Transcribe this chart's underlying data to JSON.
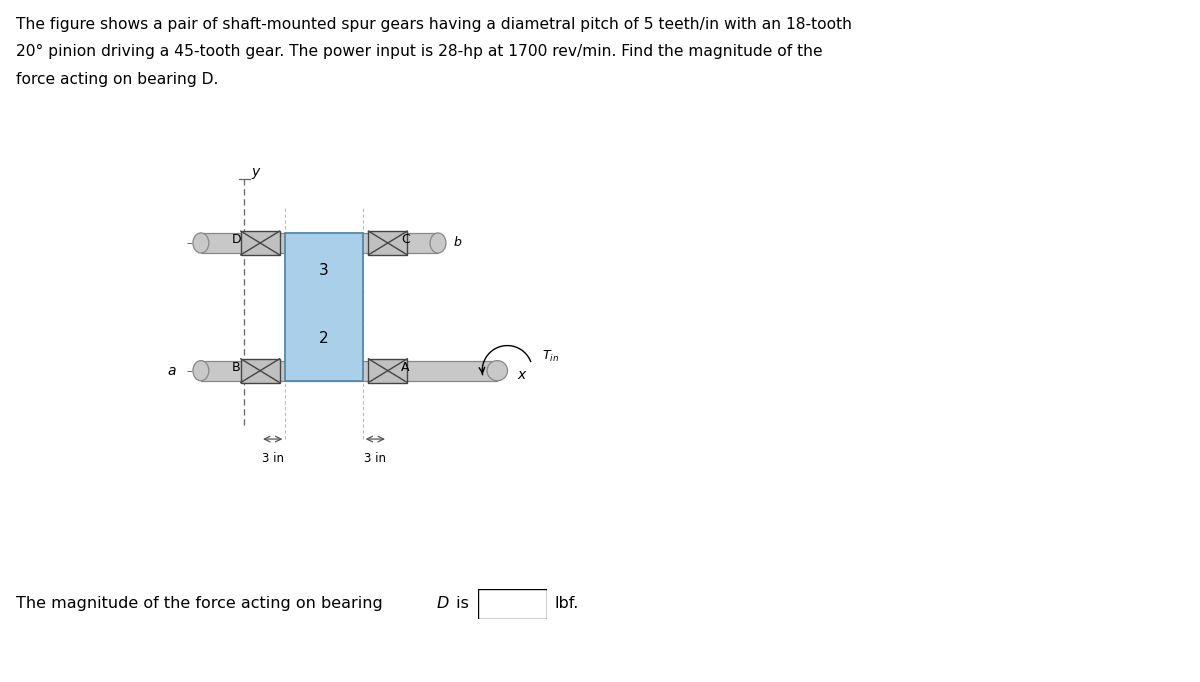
{
  "title_line1": "The figure shows a pair of shaft-mounted spur gears having a diametral pitch of 5 teeth/in with an 18-tooth",
  "title_line2": "20° pinion driving a 45-tooth gear. The power input is 28-hp at 1700 rev/min. Find the magnitude of the",
  "title_line3": "force acting on bearing D.",
  "bottom_text": "The magnitude of the force acting on bearing ",
  "bottom_italic": "D",
  "bottom_suffix": " is",
  "bottom_unit": "lbf.",
  "bg_color": "#ffffff",
  "gear_fill": "#aacfe8",
  "gear_stroke": "#5588aa",
  "shaft_fill": "#c8c8c8",
  "shaft_stroke": "#888888",
  "bearing_fill": "#c0c0c0",
  "bearing_stroke": "#444444",
  "text_color": "#000000",
  "axis_color": "#666666",
  "dim_color": "#555555"
}
